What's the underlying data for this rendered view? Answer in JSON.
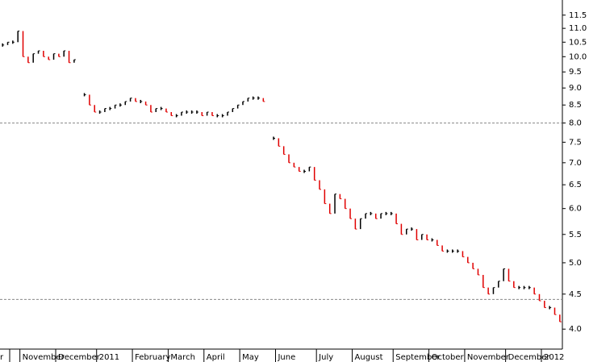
{
  "chart_data": {
    "type": "price-bars",
    "categories": [
      "r",
      null,
      "November",
      null,
      null,
      null,
      null,
      null,
      null,
      "December",
      null,
      null,
      null,
      null,
      null,
      null,
      null,
      "2011",
      null,
      null,
      null,
      null,
      null,
      null,
      "February",
      null,
      null,
      null,
      null,
      null,
      null,
      "March",
      null,
      null,
      null,
      null,
      null,
      null,
      "April",
      null,
      null,
      null,
      null,
      null,
      null,
      "May",
      null,
      null,
      null,
      null,
      null,
      null,
      "June",
      null,
      null,
      null,
      null,
      null,
      null,
      null,
      "July",
      null,
      null,
      null,
      null,
      null,
      null,
      "August",
      null,
      null,
      null,
      null,
      null,
      null,
      null,
      "September",
      null,
      null,
      null,
      null,
      null,
      null,
      "October",
      null,
      null,
      null,
      null,
      null,
      null,
      "November",
      null,
      null,
      null,
      null,
      null,
      null,
      null,
      "December",
      null,
      null,
      null,
      null,
      null,
      null,
      "2012",
      null,
      null,
      null,
      null,
      null
    ],
    "values": [
      10.4,
      10.5,
      10.5,
      10.9,
      10.0,
      9.8,
      10.1,
      10.2,
      10.0,
      9.9,
      10.1,
      10.0,
      10.2,
      9.8,
      9.9,
      null,
      8.8,
      8.5,
      8.3,
      8.3,
      8.4,
      8.4,
      8.5,
      8.5,
      8.6,
      8.7,
      8.6,
      8.6,
      8.5,
      8.3,
      8.4,
      8.4,
      8.3,
      8.2,
      8.2,
      8.3,
      8.3,
      8.3,
      8.3,
      8.2,
      8.3,
      8.2,
      8.2,
      8.2,
      8.3,
      8.4,
      8.5,
      8.6,
      8.7,
      8.7,
      8.7,
      8.6,
      null,
      7.6,
      7.4,
      7.2,
      7.0,
      6.9,
      6.8,
      6.8,
      6.9,
      6.6,
      6.4,
      6.1,
      5.9,
      6.3,
      6.2,
      6.0,
      5.8,
      5.6,
      5.8,
      5.9,
      5.9,
      5.8,
      5.9,
      5.9,
      5.9,
      5.7,
      5.5,
      5.6,
      5.6,
      5.4,
      5.5,
      5.4,
      5.4,
      5.3,
      5.2,
      5.2,
      5.2,
      5.2,
      5.1,
      5.0,
      4.9,
      4.8,
      4.6,
      4.5,
      4.6,
      4.7,
      4.9,
      4.7,
      4.6,
      4.6,
      4.6,
      4.6,
      4.5,
      4.4,
      4.3,
      4.3,
      4.2,
      4.1
    ],
    "up_color": "#000000",
    "down_color": "#e00000",
    "log_scale": true,
    "ylim": [
      3.74,
      12.1
    ],
    "yticks": [
      {
        "value": 4,
        "label": "4.0"
      },
      4.5,
      {
        "value": 5,
        "label": "5.0"
      },
      5.5,
      {
        "value": 6,
        "label": "6.0"
      },
      6.5,
      {
        "value": 7,
        "label": "7.0"
      },
      7.5,
      {
        "value": 8,
        "label": "8.0"
      },
      8.5,
      {
        "value": 9,
        "label": "9.0"
      },
      9.5,
      {
        "value": 10,
        "label": "10.0"
      },
      10.5,
      {
        "value": 11,
        "label": "11.0"
      },
      11.5
    ],
    "reference_lines": [
      8.0,
      4.42
    ]
  }
}
